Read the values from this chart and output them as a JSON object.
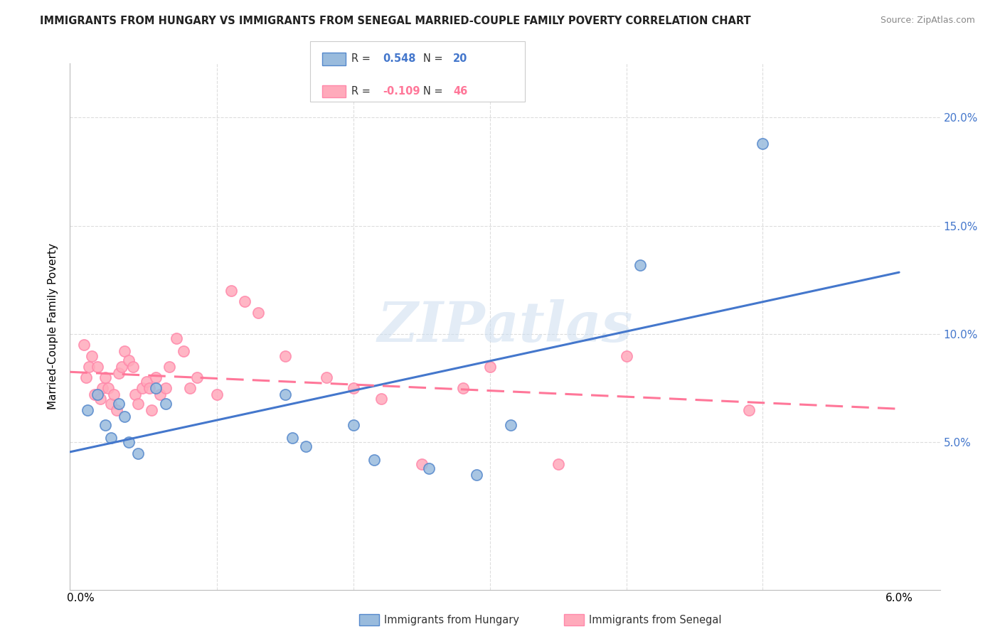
{
  "title": "IMMIGRANTS FROM HUNGARY VS IMMIGRANTS FROM SENEGAL MARRIED-COUPLE FAMILY POVERTY CORRELATION CHART",
  "source": "Source: ZipAtlas.com",
  "ylabel": "Married-Couple Family Poverty",
  "hungary_R": 0.548,
  "hungary_N": 20,
  "senegal_R": -0.109,
  "senegal_N": 46,
  "hungary_color": "#99BBDD",
  "senegal_color": "#FFAABB",
  "hungary_edge_color": "#5588CC",
  "senegal_edge_color": "#FF88AA",
  "hungary_line_color": "#4477CC",
  "senegal_line_color": "#FF7799",
  "background_color": "#FFFFFF",
  "watermark": "ZIPatlas",
  "hungary_x": [
    0.05,
    0.12,
    0.18,
    0.22,
    0.28,
    0.32,
    0.35,
    0.42,
    0.55,
    0.62,
    1.5,
    1.55,
    1.65,
    2.0,
    2.15,
    2.55,
    2.9,
    3.15,
    4.1,
    5.0
  ],
  "hungary_y": [
    6.5,
    7.2,
    5.8,
    5.2,
    6.8,
    6.2,
    5.0,
    4.5,
    7.5,
    6.8,
    7.2,
    5.2,
    4.8,
    5.8,
    4.2,
    3.8,
    3.5,
    5.8,
    13.2,
    18.8
  ],
  "senegal_x": [
    0.02,
    0.04,
    0.06,
    0.08,
    0.1,
    0.12,
    0.14,
    0.16,
    0.18,
    0.2,
    0.22,
    0.24,
    0.26,
    0.28,
    0.3,
    0.32,
    0.35,
    0.38,
    0.4,
    0.42,
    0.45,
    0.48,
    0.5,
    0.52,
    0.55,
    0.58,
    0.62,
    0.65,
    0.7,
    0.75,
    0.8,
    0.85,
    1.0,
    1.1,
    1.2,
    1.3,
    1.5,
    1.8,
    2.0,
    2.2,
    2.5,
    2.8,
    3.0,
    3.5,
    4.0,
    4.9
  ],
  "senegal_y": [
    9.5,
    8.0,
    8.5,
    9.0,
    7.2,
    8.5,
    7.0,
    7.5,
    8.0,
    7.5,
    6.8,
    7.2,
    6.5,
    8.2,
    8.5,
    9.2,
    8.8,
    8.5,
    7.2,
    6.8,
    7.5,
    7.8,
    7.5,
    6.5,
    8.0,
    7.2,
    7.5,
    8.5,
    9.8,
    9.2,
    7.5,
    8.0,
    7.2,
    12.0,
    11.5,
    11.0,
    9.0,
    8.0,
    7.5,
    7.0,
    4.0,
    7.5,
    8.5,
    4.0,
    9.0,
    6.5
  ],
  "xlim": [
    -0.08,
    6.3
  ],
  "ylim": [
    -1.8,
    22.5
  ],
  "ytick_vals": [
    0,
    5,
    10,
    15,
    20
  ],
  "ytick_labels_right": [
    "",
    "5.0%",
    "10.0%",
    "15.0%",
    "20.0%"
  ],
  "xtick_vals": [
    0,
    1,
    2,
    3,
    4,
    5,
    6
  ],
  "xtick_labels": [
    "0.0%",
    "",
    "",
    "",
    "",
    "",
    "6.0%"
  ]
}
